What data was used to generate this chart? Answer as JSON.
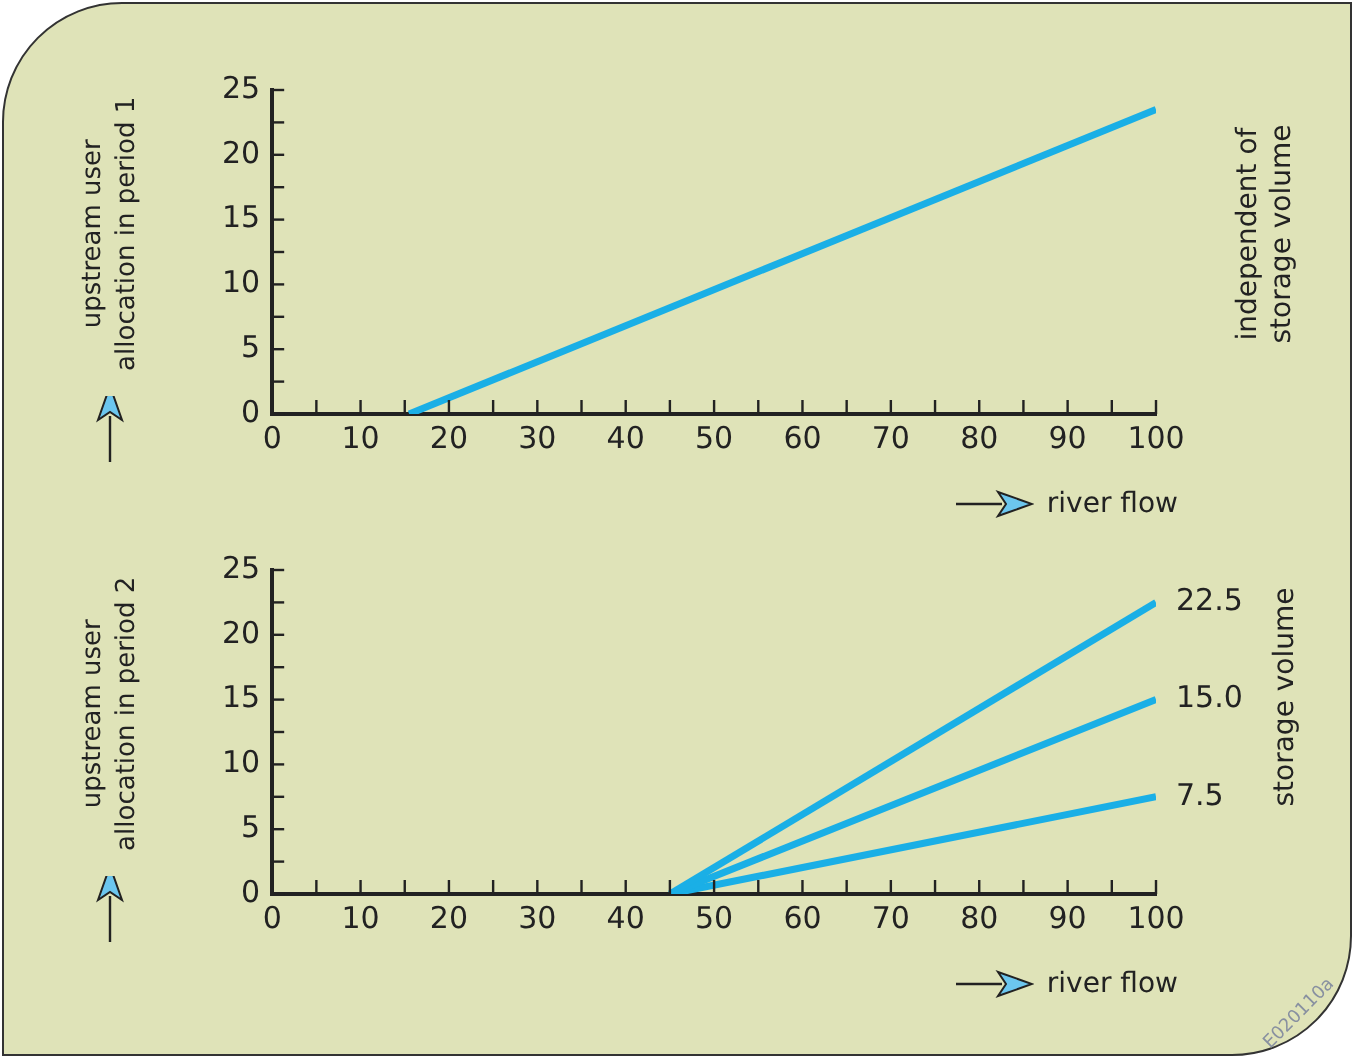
{
  "chart_data": [
    {
      "type": "line",
      "xlabel": "river flow",
      "ylabel": "upstream user allocation in period 1",
      "annotations": [
        "independent of storage volume"
      ],
      "series": [
        {
          "color": "#1aafe6",
          "x": [
            15.5,
            100
          ],
          "values": [
            0,
            23.5
          ]
        }
      ],
      "xlim": [
        0,
        100
      ],
      "xticks": [
        0,
        {
          "value": 5,
          "label": null
        },
        10,
        {
          "value": 15,
          "label": null
        },
        20,
        {
          "value": 25,
          "label": null
        },
        30,
        {
          "value": 35,
          "label": null
        },
        40,
        {
          "value": 45,
          "label": null
        },
        50,
        {
          "value": 55,
          "label": null
        },
        60,
        {
          "value": 65,
          "label": null
        },
        70,
        {
          "value": 75,
          "label": null
        },
        80,
        {
          "value": 85,
          "label": null
        },
        90,
        {
          "value": 95,
          "label": null
        },
        100
      ],
      "ylim": [
        0,
        25
      ],
      "yticks": [
        0,
        {
          "value": 2.5,
          "label": null
        },
        5,
        {
          "value": 7.5,
          "label": null
        },
        10,
        {
          "value": 12.5,
          "label": null
        },
        15,
        {
          "value": 17.5,
          "label": null
        },
        20,
        {
          "value": 22.5,
          "label": null
        },
        25
      ],
      "marker": "none",
      "line_style": "solid"
    },
    {
      "type": "line",
      "xlabel": "river flow",
      "ylabel": "upstream user allocation in period 2",
      "legend_title": "storage volume",
      "annotations": [
        "E020110a"
      ],
      "series": [
        {
          "name": "22.5",
          "color": "#1aafe6",
          "x": [
            45,
            100
          ],
          "values": [
            0,
            22.5
          ]
        },
        {
          "name": "15.0",
          "color": "#1aafe6",
          "x": [
            45,
            100
          ],
          "values": [
            0,
            15
          ]
        },
        {
          "name": "7.5",
          "color": "#1aafe6",
          "x": [
            45,
            100
          ],
          "values": [
            0,
            7.5
          ]
        }
      ],
      "xlim": [
        0,
        100
      ],
      "xticks": [
        0,
        {
          "value": 5,
          "label": null
        },
        10,
        {
          "value": 15,
          "label": null
        },
        20,
        {
          "value": 25,
          "label": null
        },
        30,
        {
          "value": 35,
          "label": null
        },
        40,
        {
          "value": 45,
          "label": null
        },
        50,
        {
          "value": 55,
          "label": null
        },
        60,
        {
          "value": 65,
          "label": null
        },
        70,
        {
          "value": 75,
          "label": null
        },
        80,
        {
          "value": 85,
          "label": null
        },
        90,
        {
          "value": 95,
          "label": null
        },
        100
      ],
      "ylim": [
        0,
        25
      ],
      "yticks": [
        0,
        {
          "value": 2.5,
          "label": null
        },
        5,
        {
          "value": 7.5,
          "label": null
        },
        10,
        {
          "value": 12.5,
          "label": null
        },
        15,
        {
          "value": 17.5,
          "label": null
        },
        20,
        {
          "value": 22.5,
          "label": null
        },
        25
      ],
      "marker": "none",
      "line_style": "solid"
    }
  ]
}
